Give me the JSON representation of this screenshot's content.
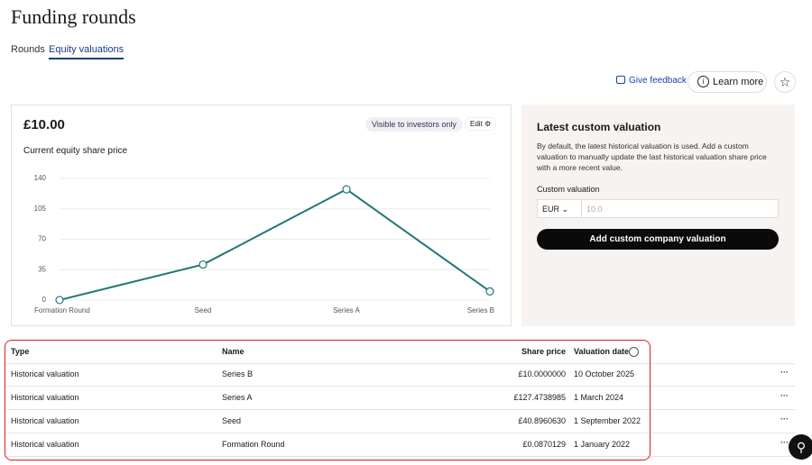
{
  "header": {
    "title": "Funding rounds",
    "tabs": [
      "Rounds",
      "Equity valuations"
    ],
    "feedback": "Give feedback",
    "learn_more": "Learn more"
  },
  "card": {
    "price": "£10.00",
    "badge": "Visible to investors only",
    "edit": "Edit",
    "subtitle": "Current equity share price"
  },
  "chart_data": {
    "type": "line",
    "categories": [
      "Formation Round",
      "Seed",
      "Series A",
      "Series B"
    ],
    "values": [
      0.0870129,
      40.896063,
      127.4738985,
      10.0
    ],
    "color": "#23767a",
    "ylim": [
      0,
      140
    ],
    "yticks": [
      0,
      35,
      70,
      105,
      140
    ],
    "grid": true
  },
  "custom": {
    "title": "Latest custom valuation",
    "description": "By default, the latest historical valuation is used. Add a custom valuation to manually update the last historical valuation share price with a more recent value.",
    "label": "Custom valuation",
    "currency": "EUR",
    "placeholder": "10.0",
    "button": "Add custom company valuation"
  },
  "table": {
    "columns": [
      "Type",
      "Name",
      "Share price",
      "Valuation date"
    ],
    "rows": [
      [
        "Historical valuation",
        "Series B",
        "£10.0000000",
        "10 October 2025"
      ],
      [
        "Historical valuation",
        "Series A",
        "£127.4738985",
        "1 March 2024"
      ],
      [
        "Historical valuation",
        "Seed",
        "£40.8960630",
        "1 September 2022"
      ],
      [
        "Historical valuation",
        "Formation Round",
        "£0.0870129",
        "1 January 2022"
      ]
    ]
  }
}
